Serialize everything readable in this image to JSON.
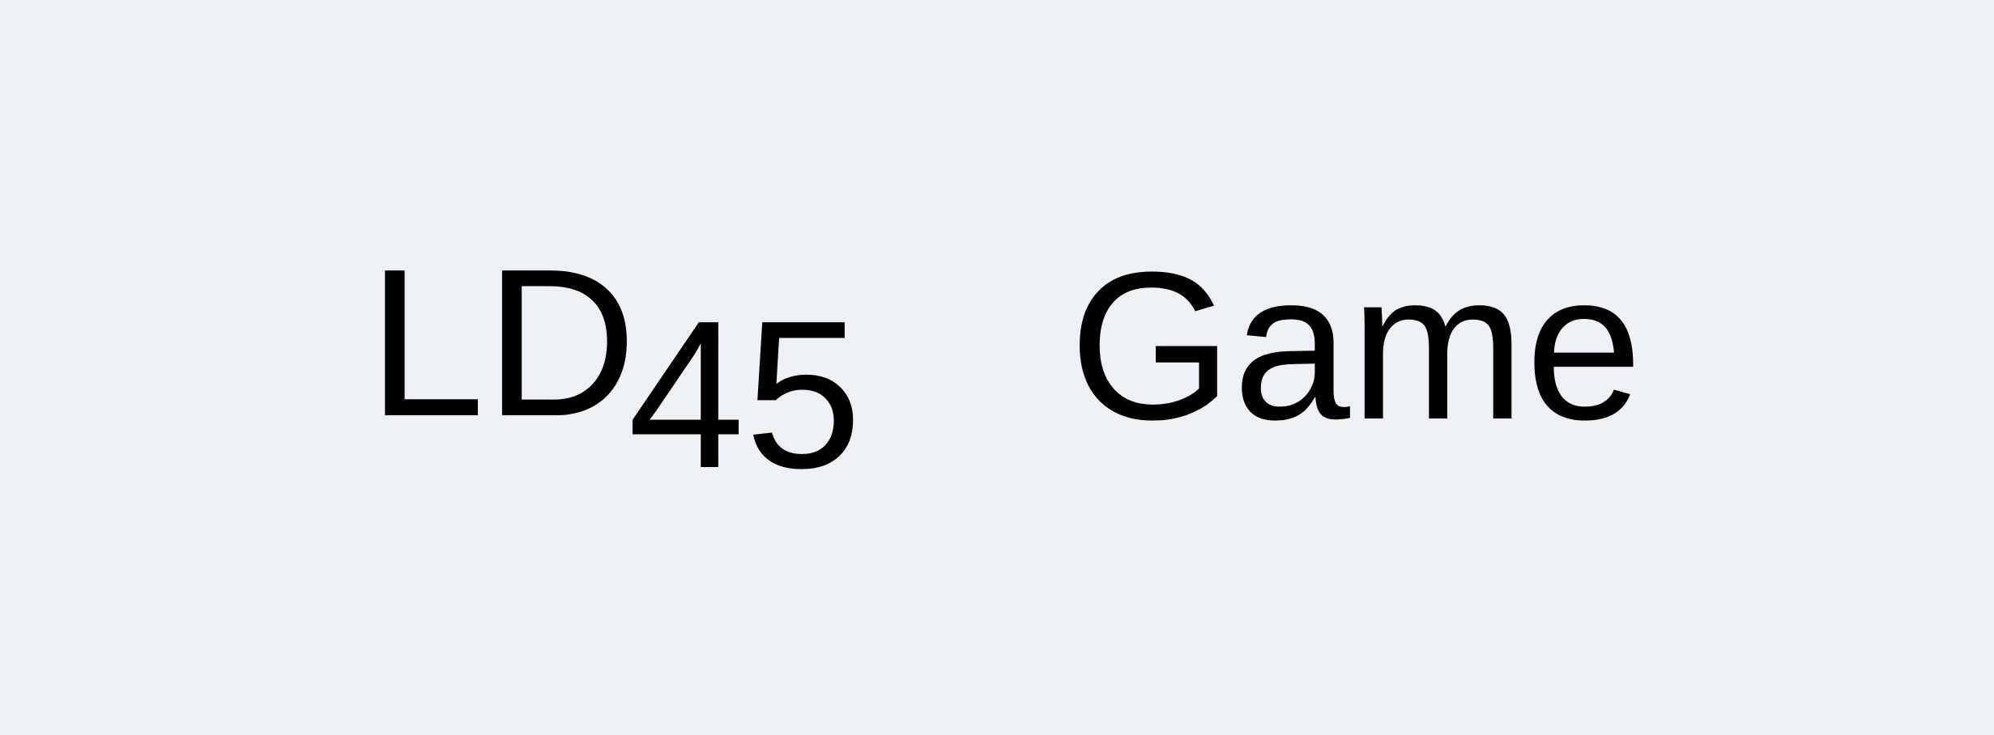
{
  "title": {
    "prefix": "LD",
    "number": "45",
    "word": "Game"
  },
  "colors": {
    "background": "#edf1f6",
    "text": "#000000"
  }
}
